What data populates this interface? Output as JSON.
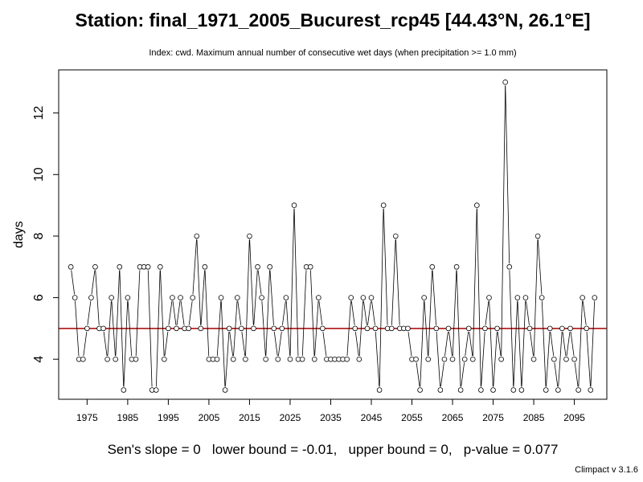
{
  "chart_data": {
    "type": "line",
    "title": "Station: final_1971_2005_Bucurest_rcp45 [44.43°N, 26.1°E]",
    "subtitle": "Index: cwd. Maximum annual number of consecutive wet days (when precipitation >= 1.0 mm)",
    "xlabel": "",
    "ylabel": "days",
    "xlim": [
      1968,
      2103
    ],
    "ylim": [
      2.7,
      13.4
    ],
    "x_ticks": [
      1975,
      1985,
      1995,
      2005,
      2015,
      2025,
      2035,
      2045,
      2055,
      2065,
      2075,
      2085,
      2095
    ],
    "y_ticks": [
      4,
      6,
      8,
      10,
      12
    ],
    "x_start": 1971,
    "values": [
      7,
      6,
      4,
      4,
      5,
      6,
      7,
      5,
      5,
      4,
      6,
      4,
      7,
      3,
      6,
      4,
      4,
      7,
      7,
      7,
      3,
      3,
      7,
      4,
      5,
      6,
      5,
      6,
      5,
      5,
      6,
      8,
      5,
      7,
      4,
      4,
      4,
      6,
      3,
      5,
      4,
      6,
      5,
      4,
      8,
      5,
      7,
      6,
      4,
      7,
      5,
      4,
      5,
      6,
      4,
      9,
      4,
      4,
      7,
      7,
      4,
      6,
      5,
      4,
      4,
      4,
      4,
      4,
      4,
      6,
      5,
      4,
      6,
      5,
      6,
      5,
      3,
      9,
      5,
      5,
      8,
      5,
      5,
      5,
      4,
      4,
      3,
      6,
      4,
      7,
      5,
      3,
      4,
      5,
      4,
      7,
      3,
      4,
      5,
      4,
      9,
      3,
      5,
      6,
      3,
      5,
      4,
      13,
      7,
      3,
      6,
      3,
      6,
      5,
      4,
      8,
      6,
      3,
      5,
      4,
      3,
      5,
      4,
      5,
      4,
      3,
      6,
      5,
      3,
      6
    ],
    "trend_line": {
      "value": 5.0,
      "color": "#aa0000"
    },
    "stats_text": "Sen's slope = 0   lower bound = -0.01,   upper bound = 0,   p-value = 0.077",
    "credit": "Climpact v 3.1.6",
    "grid": false
  }
}
